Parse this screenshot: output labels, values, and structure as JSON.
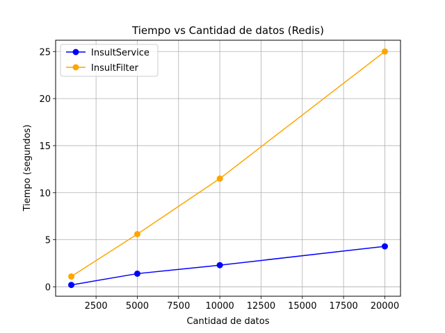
{
  "chart_data": {
    "type": "line",
    "title": "Tiempo vs Cantidad de datos (Redis)",
    "xlabel": "Cantidad de datos",
    "ylabel": "Tiempo (segundos)",
    "x": [
      1000,
      5000,
      10000,
      20000
    ],
    "series": [
      {
        "name": "InsultService",
        "color": "#0000ff",
        "values": [
          0.2,
          1.4,
          2.3,
          4.3
        ]
      },
      {
        "name": "InsultFilter",
        "color": "#ffa500",
        "values": [
          1.1,
          5.6,
          11.5,
          25.0
        ]
      }
    ],
    "xlim": [
      50,
      20950
    ],
    "ylim": [
      -1.0,
      26.2
    ],
    "xticks": [
      2500,
      5000,
      7500,
      10000,
      12500,
      15000,
      17500,
      20000
    ],
    "yticks": [
      0,
      5,
      10,
      15,
      20,
      25
    ],
    "grid": true,
    "legend_position": "top-left"
  }
}
